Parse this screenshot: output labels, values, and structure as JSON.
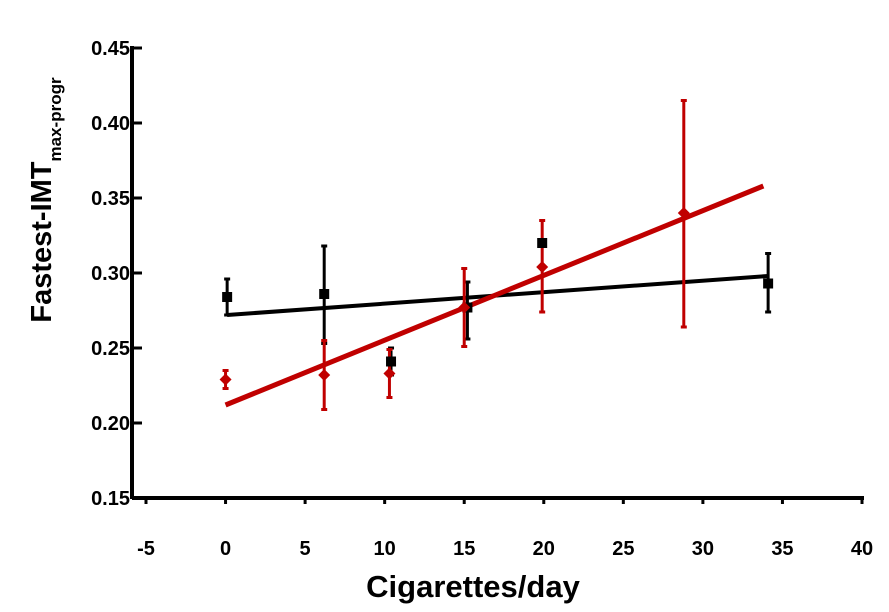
{
  "chart_data": {
    "type": "scatter",
    "title": "",
    "xlabel": "Cigarettes/day",
    "ylabel": "Fastest-IMT",
    "ylabel_subscript": "max-progr",
    "xlim": [
      -5,
      40
    ],
    "ylim": [
      0.15,
      0.45
    ],
    "x_ticks": [
      -5,
      0,
      5,
      10,
      15,
      20,
      25,
      30,
      35,
      40
    ],
    "x_tick_labels": [
      "-5",
      "0",
      "5",
      "10",
      "15",
      "20",
      "25",
      "30",
      "35",
      "40"
    ],
    "y_ticks": [
      0.15,
      0.2,
      0.25,
      0.3,
      0.35,
      0.4,
      0.45
    ],
    "y_tick_labels": [
      "0.15",
      "0.20",
      "0.25",
      "0.30",
      "0.35",
      "0.40",
      "0.45"
    ],
    "grid": false,
    "legend": "none",
    "series": [
      {
        "color": "#000000",
        "marker": "square",
        "points": [
          {
            "x": 0.1,
            "y": 0.284,
            "err_low": 0.272,
            "err_high": 0.296
          },
          {
            "x": 6.2,
            "y": 0.286,
            "err_low": 0.253,
            "err_high": 0.318
          },
          {
            "x": 10.4,
            "y": 0.241,
            "err_low": 0.232,
            "err_high": 0.25
          },
          {
            "x": 15.2,
            "y": 0.277,
            "err_low": 0.256,
            "err_high": 0.294
          },
          {
            "x": 19.9,
            "y": 0.32,
            "err_low": 0.32,
            "err_high": 0.32
          },
          {
            "x": 34.1,
            "y": 0.293,
            "err_low": 0.274,
            "err_high": 0.313
          }
        ],
        "trendline": {
          "x": [
            0.1,
            34.1
          ],
          "y": [
            0.272,
            0.298
          ]
        }
      },
      {
        "color": "#c00000",
        "marker": "diamond",
        "points": [
          {
            "x": 0.0,
            "y": 0.229,
            "err_low": 0.223,
            "err_high": 0.235
          },
          {
            "x": 6.2,
            "y": 0.232,
            "err_low": 0.209,
            "err_high": 0.255
          },
          {
            "x": 10.3,
            "y": 0.233,
            "err_low": 0.217,
            "err_high": 0.249
          },
          {
            "x": 15.0,
            "y": 0.277,
            "err_low": 0.251,
            "err_high": 0.303
          },
          {
            "x": 19.9,
            "y": 0.304,
            "err_low": 0.274,
            "err_high": 0.335
          },
          {
            "x": 28.8,
            "y": 0.34,
            "err_low": 0.264,
            "err_high": 0.415
          }
        ],
        "trendline": {
          "x": [
            0.0,
            33.8
          ],
          "y": [
            0.212,
            0.358
          ]
        }
      }
    ]
  }
}
